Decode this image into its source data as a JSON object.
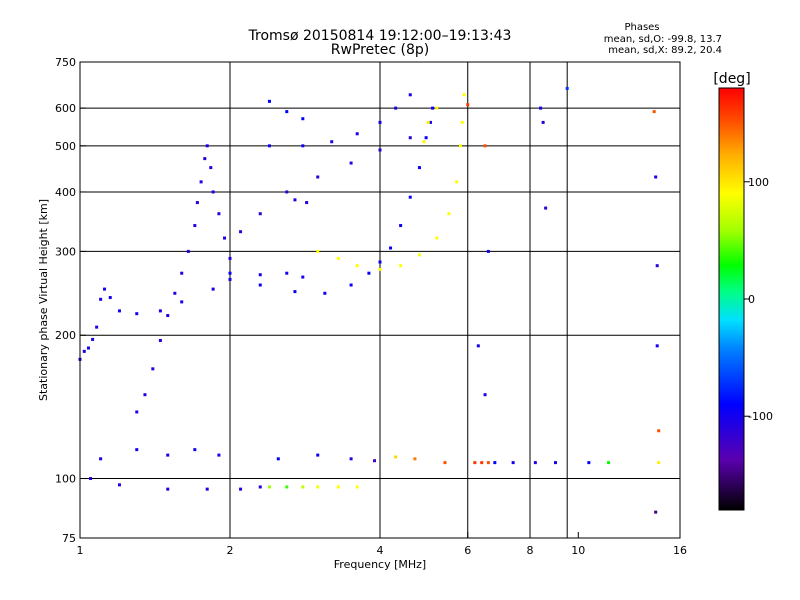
{
  "header": {
    "title": "Tromsø 20150814 19:12:00–19:13:43",
    "subtitle": "RwPretec (8p)"
  },
  "phases": {
    "title": "Phases",
    "line_o": "mean, sd,O: -99.8, 13.7",
    "line_x": "mean, sd,X:  89.2, 20.4"
  },
  "colorbar": {
    "label": "[deg]",
    "ticks": [
      {
        "value": 100,
        "label": "100"
      },
      {
        "value": 0,
        "label": "0"
      },
      {
        "value": -100,
        "label": "-100"
      }
    ],
    "range": [
      -180,
      180
    ]
  },
  "chart_data": {
    "type": "scatter",
    "title": "Tromsø 20150814 19:12:00–19:13:43",
    "subtitle": "RwPretec (8p)",
    "xlabel": "Frequency [MHz]",
    "ylabel": "Stationary phase Virtual Height [km]",
    "x_scale": "log",
    "y_scale": "log",
    "xlim": [
      1,
      16
    ],
    "ylim": [
      75,
      750
    ],
    "x_ticks": [
      {
        "value": 1,
        "label": "1"
      },
      {
        "value": 2,
        "label": "2"
      },
      {
        "value": 4,
        "label": "4"
      },
      {
        "value": 6,
        "label": "6"
      },
      {
        "value": 8,
        "label": "8"
      },
      {
        "value": 10,
        "label": "10"
      },
      {
        "value": 16,
        "label": "16"
      }
    ],
    "y_ticks": [
      {
        "value": 75,
        "label": "75"
      },
      {
        "value": 100,
        "label": "100"
      },
      {
        "value": 200,
        "label": "200"
      },
      {
        "value": 300,
        "label": "300"
      },
      {
        "value": 400,
        "label": "400"
      },
      {
        "value": 500,
        "label": "500"
      },
      {
        "value": 600,
        "label": "600"
      },
      {
        "value": 750,
        "label": "750"
      }
    ],
    "x_grid": [
      2,
      4,
      6,
      8,
      9.5
    ],
    "y_grid": [
      100,
      200,
      300,
      400,
      500,
      600
    ],
    "grid": true,
    "color_scale": "phase [deg], -180 to 180",
    "series": [
      {
        "points": [
          [
            1.0,
            178,
            -110
          ],
          [
            1.02,
            185,
            -110
          ],
          [
            1.04,
            188,
            -110
          ],
          [
            1.06,
            196,
            -110
          ],
          [
            1.08,
            208,
            -110
          ],
          [
            1.1,
            238,
            -110
          ],
          [
            1.12,
            250,
            -110
          ],
          [
            1.15,
            240,
            -110
          ],
          [
            1.2,
            225,
            -110
          ],
          [
            1.3,
            222,
            -110
          ],
          [
            1.45,
            225,
            -110
          ],
          [
            1.6,
            235,
            -110
          ],
          [
            1.85,
            250,
            -110
          ],
          [
            2.0,
            262,
            -110
          ],
          [
            2.3,
            268,
            -110
          ],
          [
            2.6,
            270,
            -110
          ],
          [
            2.8,
            265,
            -110
          ]
        ]
      },
      {
        "points": [
          [
            1.3,
            138,
            -115
          ],
          [
            1.35,
            150,
            -115
          ],
          [
            1.4,
            170,
            -115
          ],
          [
            1.45,
            195,
            -115
          ],
          [
            1.5,
            220,
            -115
          ],
          [
            1.55,
            245,
            -115
          ],
          [
            1.6,
            270,
            -115
          ],
          [
            1.65,
            300,
            -115
          ],
          [
            1.7,
            340,
            -115
          ],
          [
            1.72,
            380,
            -115
          ],
          [
            1.75,
            420,
            -115
          ],
          [
            1.78,
            470,
            -115
          ],
          [
            1.8,
            500,
            -115
          ],
          [
            1.83,
            450,
            -115
          ],
          [
            1.85,
            400,
            -115
          ],
          [
            1.9,
            360,
            -115
          ],
          [
            1.95,
            320,
            -115
          ],
          [
            2.0,
            290,
            -115
          ]
        ]
      },
      {
        "points": [
          [
            2.0,
            270,
            -105
          ],
          [
            2.3,
            255,
            -105
          ],
          [
            2.7,
            247,
            -105
          ],
          [
            3.1,
            245,
            -105
          ],
          [
            3.5,
            255,
            -105
          ],
          [
            3.8,
            270,
            -105
          ],
          [
            4.0,
            285,
            -105
          ],
          [
            4.2,
            305,
            -105
          ],
          [
            4.4,
            340,
            -105
          ],
          [
            4.6,
            390,
            -105
          ],
          [
            4.8,
            450,
            -105
          ],
          [
            4.95,
            520,
            -105
          ],
          [
            5.05,
            560,
            -105
          ],
          [
            5.1,
            600,
            -105
          ]
        ]
      },
      {
        "points": [
          [
            2.4,
            500,
            -110
          ],
          [
            2.8,
            500,
            -110
          ],
          [
            3.2,
            510,
            -110
          ],
          [
            3.6,
            530,
            -110
          ],
          [
            4.0,
            560,
            -110
          ],
          [
            4.3,
            600,
            -110
          ],
          [
            4.6,
            640,
            -110
          ]
        ]
      },
      {
        "points": [
          [
            2.4,
            620,
            -100
          ],
          [
            2.6,
            590,
            -100
          ],
          [
            2.8,
            570,
            -100
          ]
        ]
      },
      {
        "points": [
          [
            2.7,
            385,
            -115
          ],
          [
            2.85,
            380,
            -115
          ]
        ]
      },
      {
        "points": [
          [
            2.1,
            330,
            -120
          ],
          [
            2.3,
            360,
            -120
          ],
          [
            2.6,
            400,
            -120
          ],
          [
            3.0,
            430,
            -120
          ],
          [
            3.5,
            460,
            -120
          ],
          [
            4.0,
            490,
            -120
          ],
          [
            4.6,
            520,
            -120
          ]
        ]
      },
      {
        "points": [
          [
            3.0,
            300,
            95
          ],
          [
            3.3,
            290,
            95
          ],
          [
            3.6,
            280,
            95
          ],
          [
            4.0,
            275,
            95
          ],
          [
            4.4,
            280,
            95
          ],
          [
            4.8,
            295,
            95
          ],
          [
            5.2,
            320,
            95
          ],
          [
            5.5,
            360,
            95
          ],
          [
            5.7,
            420,
            95
          ],
          [
            5.8,
            500,
            95
          ],
          [
            5.85,
            560,
            95
          ],
          [
            5.9,
            640,
            95
          ]
        ]
      },
      {
        "points": [
          [
            4.9,
            510,
            100
          ],
          [
            5.0,
            560,
            100
          ],
          [
            5.2,
            600,
            100
          ]
        ]
      },
      {
        "points": [
          [
            1.05,
            100,
            -115
          ],
          [
            1.2,
            97,
            -115
          ],
          [
            1.5,
            95,
            -115
          ],
          [
            1.8,
            95,
            -115
          ],
          [
            2.1,
            95,
            -115
          ],
          [
            2.3,
            96,
            -115
          ]
        ]
      },
      {
        "points": [
          [
            2.4,
            96,
            60
          ],
          [
            2.6,
            96,
            40
          ],
          [
            2.8,
            96,
            70
          ],
          [
            3.0,
            96,
            90
          ],
          [
            3.3,
            96,
            95
          ],
          [
            3.6,
            96,
            95
          ]
        ]
      },
      {
        "points": [
          [
            1.1,
            110,
            -110
          ],
          [
            1.3,
            115,
            -110
          ],
          [
            1.5,
            112,
            -110
          ],
          [
            1.7,
            115,
            -110
          ],
          [
            1.9,
            112,
            -110
          ]
        ]
      },
      {
        "points": [
          [
            2.5,
            110,
            -100
          ],
          [
            3.0,
            112,
            -105
          ],
          [
            3.5,
            110,
            -120
          ],
          [
            3.9,
            109,
            -130
          ],
          [
            4.3,
            111,
            110
          ],
          [
            4.7,
            110,
            140
          ],
          [
            5.4,
            108,
            150
          ],
          [
            6.2,
            108,
            160
          ],
          [
            6.8,
            108,
            -100
          ],
          [
            7.4,
            108,
            -110
          ],
          [
            8.2,
            108,
            -115
          ],
          [
            9.0,
            108,
            -110
          ],
          [
            10.5,
            108,
            -100
          ],
          [
            11.5,
            108,
            30
          ],
          [
            14.5,
            108,
            100
          ]
        ]
      },
      {
        "points": [
          [
            6.4,
            108,
            160
          ],
          [
            6.6,
            108,
            150
          ],
          [
            14.2,
            590,
            150
          ],
          [
            14.3,
            430,
            -110
          ],
          [
            14.4,
            280,
            -120
          ],
          [
            14.4,
            190,
            -110
          ],
          [
            14.5,
            126,
            150
          ],
          [
            14.3,
            85,
            -150
          ],
          [
            6.3,
            190,
            -110
          ],
          [
            6.5,
            150,
            -110
          ],
          [
            8.5,
            560,
            -120
          ],
          [
            8.6,
            370,
            -120
          ],
          [
            9.5,
            660,
            -80
          ],
          [
            8.4,
            600,
            -110
          ],
          [
            6.5,
            500,
            150
          ],
          [
            6.0,
            610,
            160
          ],
          [
            6.6,
            300,
            -110
          ]
        ]
      }
    ]
  }
}
